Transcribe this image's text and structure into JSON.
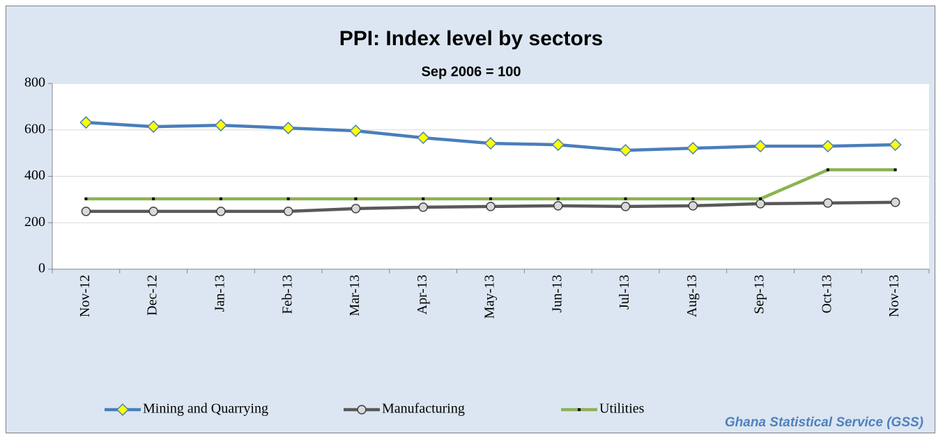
{
  "chart_data": {
    "type": "line",
    "title": "PPI:  Index level by sectors",
    "subtitle": "Sep 2006 = 100",
    "annotation": "Ghana Statistical Service (GSS)",
    "categories": [
      "Nov-12",
      "Dec-12",
      "Jan-13",
      "Feb-13",
      "Mar-13",
      "Apr-13",
      "May-13",
      "Jun-13",
      "Jul-13",
      "Aug-13",
      "Sep-13",
      "Oct-13",
      "Nov-13"
    ],
    "series": [
      {
        "name": "Mining and Quarrying",
        "color": "#4a7ebb",
        "values": [
          632,
          614,
          620,
          608,
          596,
          566,
          542,
          536,
          512,
          521,
          530,
          530,
          536
        ]
      },
      {
        "name": "Manufacturing",
        "color": "#595959",
        "values": [
          249,
          249,
          249,
          249,
          261,
          267,
          270,
          273,
          270,
          273,
          282,
          285,
          288
        ]
      },
      {
        "name": "Utilities",
        "color": "#8db255",
        "values": [
          303,
          303,
          303,
          303,
          303,
          303,
          303,
          303,
          303,
          303,
          303,
          428,
          428
        ]
      }
    ],
    "ylim": [
      0,
      800
    ],
    "yticks": [
      0,
      200,
      400,
      600,
      800
    ],
    "grid": true
  }
}
